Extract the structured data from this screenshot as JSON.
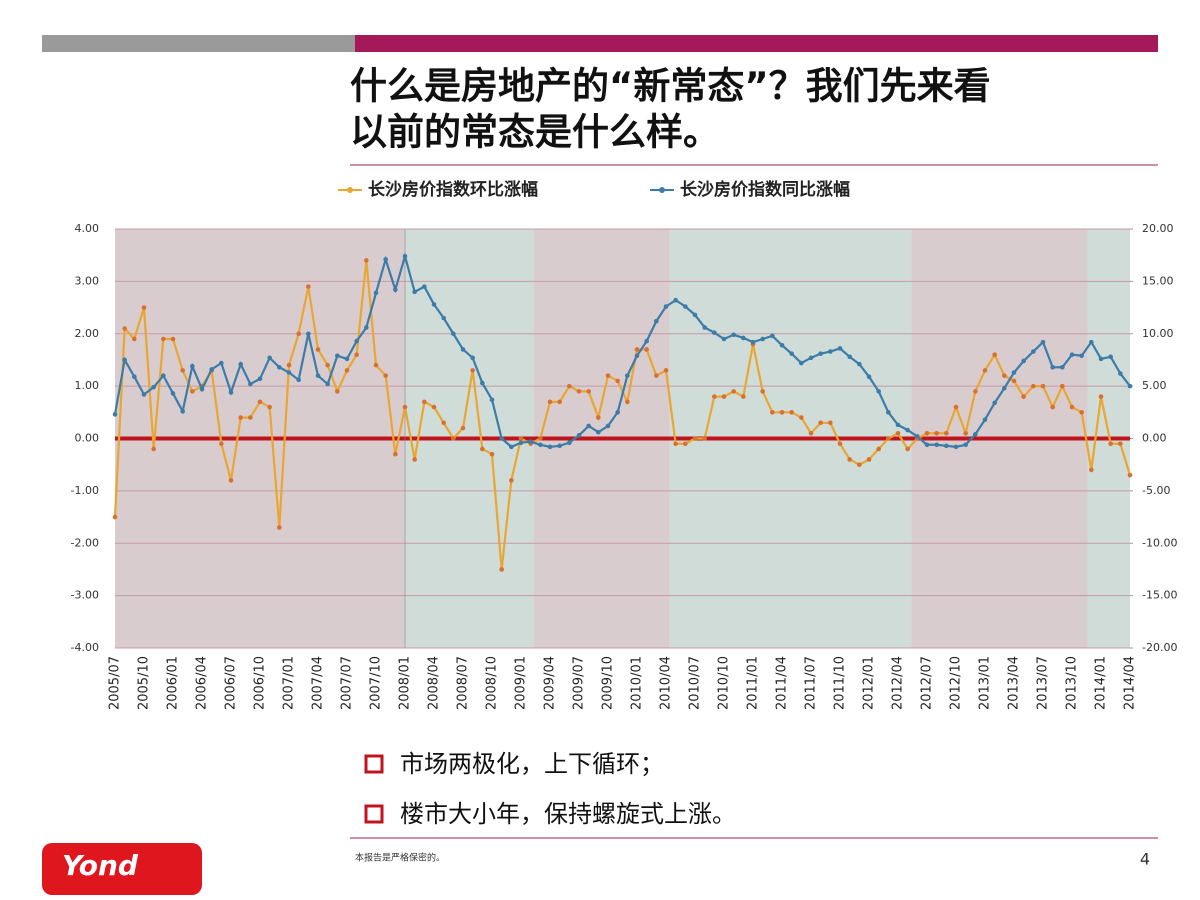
{
  "header": {
    "title_lines": [
      "什么是房地产的“新常态”？我们先来看",
      "以前的常态是什么样。"
    ]
  },
  "chart_data": {
    "type": "line",
    "categories": [
      "2005/07",
      null,
      null,
      "2005/10",
      null,
      null,
      "2006/01",
      null,
      null,
      "2006/04",
      null,
      null,
      "2006/07",
      null,
      null,
      "2006/10",
      null,
      null,
      "2007/01",
      null,
      null,
      "2007/04",
      null,
      null,
      "2007/07",
      null,
      null,
      "2007/10",
      null,
      null,
      "2008/01",
      null,
      null,
      "2008/04",
      null,
      null,
      "2008/07",
      null,
      null,
      "2008/10",
      null,
      null,
      "2009/01",
      null,
      null,
      "2009/04",
      null,
      null,
      "2009/07",
      null,
      null,
      "2009/10",
      null,
      null,
      "2010/01",
      null,
      null,
      "2010/04",
      null,
      null,
      "2010/07",
      null,
      null,
      "2010/10",
      null,
      null,
      "2011/01",
      null,
      null,
      "2011/04",
      null,
      null,
      "2011/07",
      null,
      null,
      "2011/10",
      null,
      null,
      "2012/01",
      null,
      null,
      "2012/04",
      null,
      null,
      "2012/07",
      null,
      null,
      "2012/10",
      null,
      null,
      "2013/01",
      null,
      null,
      "2013/04",
      null,
      null,
      "2013/07",
      null,
      null,
      "2013/10",
      null,
      null,
      "2014/01",
      null,
      null,
      "2014/04"
    ],
    "series": [
      {
        "name": "长沙房价指数环比涨幅",
        "color": "#e9a630",
        "values": [
          -1.5,
          2.1,
          1.9,
          2.5,
          -0.2,
          1.9,
          1.9,
          1.3,
          0.9,
          1.0,
          1.3,
          -0.1,
          -0.8,
          0.4,
          0.4,
          0.7,
          0.6,
          -1.7,
          1.4,
          2.0,
          2.9,
          1.7,
          1.4,
          0.9,
          1.3,
          1.6,
          3.4,
          1.4,
          1.2,
          -0.3,
          0.6,
          -0.4,
          0.7,
          0.6,
          0.3,
          0.0,
          0.2,
          1.3,
          -0.2,
          -0.3,
          -2.5,
          -0.8,
          0.0,
          -0.1,
          0.0,
          0.7,
          0.7,
          1.0,
          0.9,
          0.9,
          0.4,
          1.2,
          1.1,
          0.7,
          1.7,
          1.7,
          1.2,
          1.3,
          -0.1,
          -0.1,
          0.0,
          0.0,
          0.8,
          0.8,
          0.9,
          0.8,
          1.8,
          0.9,
          0.5,
          0.5,
          0.5,
          0.4,
          0.1,
          0.3,
          0.3,
          -0.1,
          -0.4,
          -0.5,
          -0.4,
          -0.2,
          0.0,
          0.1,
          -0.2,
          0.0,
          0.1,
          0.1,
          0.1,
          0.6,
          0.1,
          0.9,
          1.3,
          1.6,
          1.2,
          1.1,
          0.8,
          1.0,
          1.0,
          0.6,
          1.0,
          0.6,
          0.5,
          -0.6,
          0.8,
          -0.1,
          -0.1,
          -0.7
        ]
      },
      {
        "name": "长沙房价指数同比涨幅",
        "color": "#3b7ca8",
        "axis": "y2",
        "values": [
          2.3,
          7.5,
          5.9,
          4.2,
          4.9,
          6.0,
          4.3,
          2.6,
          6.9,
          4.7,
          6.6,
          7.2,
          4.4,
          7.1,
          5.2,
          5.7,
          7.7,
          6.8,
          6.3,
          5.6,
          10.0,
          6.0,
          5.2,
          7.9,
          7.6,
          9.3,
          10.6,
          13.9,
          17.1,
          14.2,
          17.4,
          14.0,
          14.5,
          12.8,
          11.5,
          10.0,
          8.5,
          7.7,
          5.3,
          3.7,
          0.0,
          -0.8,
          -0.4,
          -0.3,
          -0.6,
          -0.8,
          -0.7,
          -0.4,
          0.3,
          1.2,
          0.6,
          1.2,
          2.5,
          6.0,
          7.9,
          9.3,
          11.2,
          12.6,
          13.2,
          12.6,
          11.8,
          10.6,
          10.1,
          9.5,
          9.9,
          9.6,
          9.2,
          9.5,
          9.8,
          8.9,
          8.1,
          7.2,
          7.7,
          8.1,
          8.3,
          8.6,
          7.8,
          7.1,
          5.9,
          4.5,
          2.5,
          1.3,
          0.8,
          0.2,
          -0.6,
          -0.6,
          -0.7,
          -0.8,
          -0.6,
          0.4,
          1.8,
          3.4,
          4.8,
          6.3,
          7.4,
          8.3,
          9.2,
          6.8,
          6.8,
          8.0,
          7.9,
          9.2,
          7.6,
          7.8,
          6.2,
          5.0
        ]
      }
    ],
    "ylim": [
      -4,
      4
    ],
    "yticks": [
      {
        "value": -4,
        "label": "-4.00"
      },
      {
        "value": -3,
        "label": "-3.00"
      },
      {
        "value": -2,
        "label": "-2.00"
      },
      {
        "value": -1,
        "label": "-1.00"
      },
      {
        "value": 0,
        "label": "0.00"
      },
      {
        "value": 1,
        "label": "1.00"
      },
      {
        "value": 2,
        "label": "2.00"
      },
      {
        "value": 3,
        "label": "3.00"
      },
      {
        "value": 4,
        "label": "4.00"
      }
    ],
    "y2lim": [
      -20,
      20
    ],
    "y2ticks": [
      {
        "value": -20,
        "label": "-20.00"
      },
      {
        "value": -15,
        "label": "-15.00"
      },
      {
        "value": -10,
        "label": "-10.00"
      },
      {
        "value": -5,
        "label": "-5.00"
      },
      {
        "value": 0,
        "label": "0.00"
      },
      {
        "value": 5,
        "label": "5.00"
      },
      {
        "value": 10,
        "label": "10.00"
      },
      {
        "value": 15,
        "label": "15.00"
      },
      {
        "value": 20,
        "label": "20.00"
      }
    ],
    "grid": true,
    "legend": "top"
  },
  "bullets": [
    "市场两极化，上下循环；",
    "楼市大小年，保持螺旋式上涨。"
  ],
  "footer": {
    "note": "本报告是严格保密的。",
    "page": "4",
    "logo": "Yond"
  }
}
